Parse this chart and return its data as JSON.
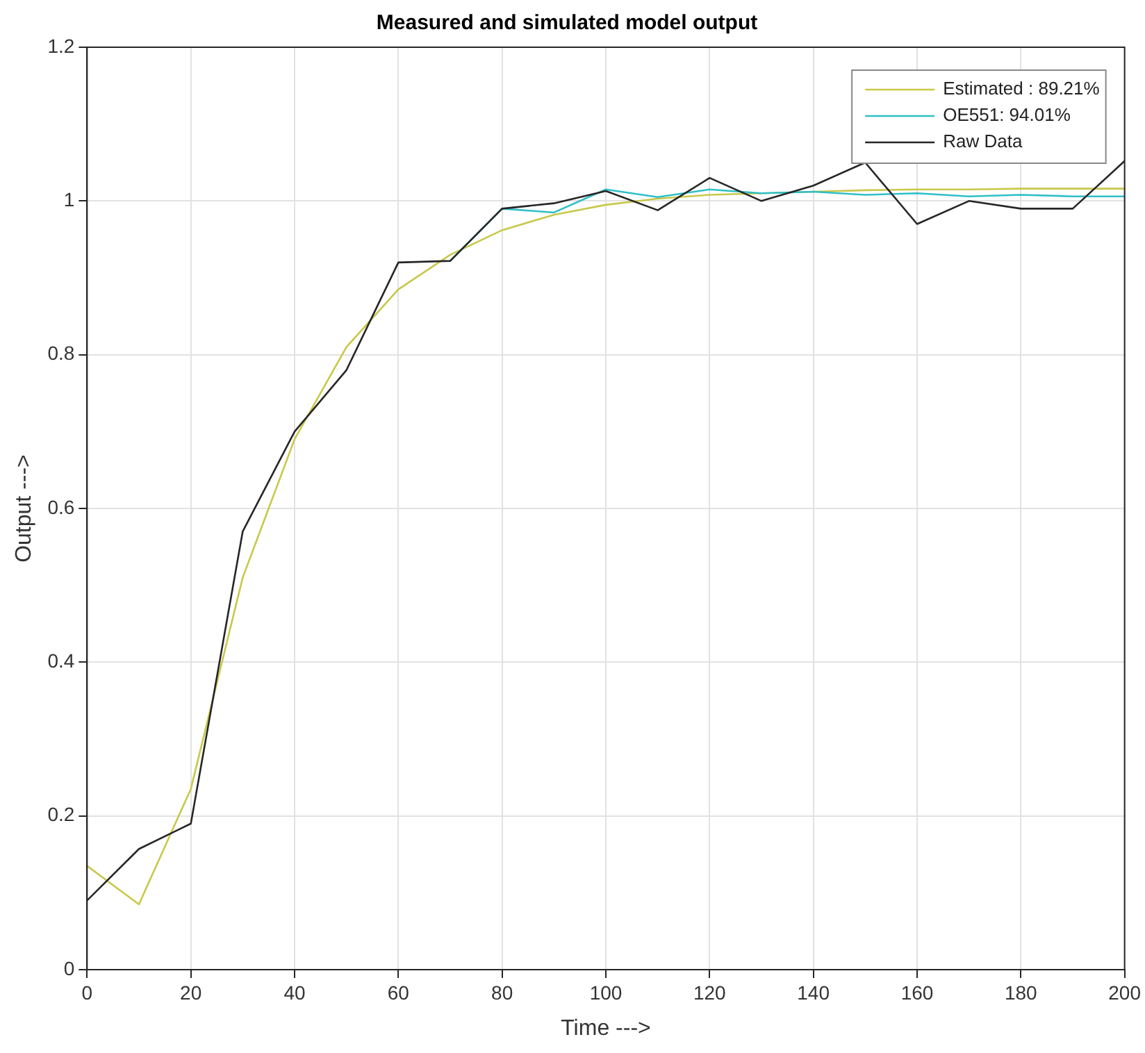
{
  "chart_data": {
    "type": "line",
    "title": "Measured and simulated model output",
    "xlabel": "Time --->",
    "ylabel": "Output --->",
    "x": [
      0,
      10,
      20,
      30,
      40,
      50,
      60,
      70,
      80,
      90,
      100,
      110,
      120,
      130,
      140,
      150,
      160,
      170,
      180,
      190,
      200
    ],
    "series": [
      {
        "name": "Estimated : 89.21%",
        "color": "#c8c84a",
        "values": [
          0.135,
          0.085,
          0.235,
          0.51,
          0.69,
          0.81,
          0.885,
          0.93,
          0.962,
          0.982,
          0.995,
          1.003,
          1.008,
          1.01,
          1.012,
          1.014,
          1.015,
          1.015,
          1.016,
          1.016,
          1.016
        ]
      },
      {
        "name": "OE551: 94.01%",
        "color": "#2fbfc8",
        "values": [
          null,
          null,
          null,
          null,
          null,
          null,
          null,
          0.922,
          0.99,
          0.985,
          1.015,
          1.005,
          1.015,
          1.01,
          1.012,
          1.008,
          1.01,
          1.006,
          1.008,
          1.006,
          1.006
        ]
      },
      {
        "name": "Raw Data",
        "color": "#262626",
        "values": [
          0.09,
          0.157,
          0.19,
          0.57,
          0.7,
          0.78,
          0.92,
          0.922,
          0.99,
          0.997,
          1.013,
          0.988,
          1.03,
          1.0,
          1.02,
          1.05,
          0.97,
          1.0,
          0.99,
          0.99,
          1.052
        ]
      }
    ],
    "xlim": [
      0,
      200
    ],
    "xticks": [
      0,
      20,
      40,
      60,
      80,
      100,
      120,
      140,
      160,
      180,
      200
    ],
    "ylim": [
      0,
      1.2
    ],
    "yticks": [
      0,
      0.2,
      0.4,
      0.6,
      0.8,
      1,
      1.2
    ],
    "grid": true,
    "legend": "top right",
    "marker": "none",
    "line_style": "solid"
  }
}
